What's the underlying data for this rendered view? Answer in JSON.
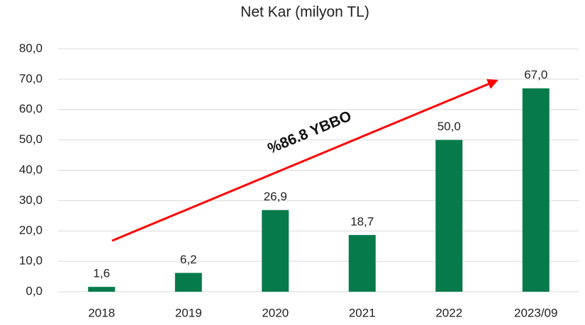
{
  "chart_data": {
    "type": "bar",
    "title": "Net Kar (milyon TL)",
    "categories": [
      "2018",
      "2019",
      "2020",
      "2021",
      "2022",
      "2023/09"
    ],
    "values": [
      1.6,
      6.2,
      26.9,
      18.7,
      50.0,
      67.0
    ],
    "value_labels": [
      "1,6",
      "6,2",
      "26,9",
      "18,7",
      "50,0",
      "67,0"
    ],
    "color": "#077a4c",
    "ylim": [
      0,
      80
    ],
    "yticks": [
      {
        "value": 0,
        "label": "0,0"
      },
      {
        "value": 10,
        "label": "10,0"
      },
      {
        "value": 20,
        "label": "20,0"
      },
      {
        "value": 30,
        "label": "30,0"
      },
      {
        "value": 40,
        "label": "40,0"
      },
      {
        "value": 50,
        "label": "50,0"
      },
      {
        "value": 60,
        "label": "60,0"
      },
      {
        "value": 70,
        "label": "70,0"
      },
      {
        "value": 80,
        "label": "80,0"
      }
    ],
    "grid": true,
    "annotation": "%86.8 YBBO"
  }
}
